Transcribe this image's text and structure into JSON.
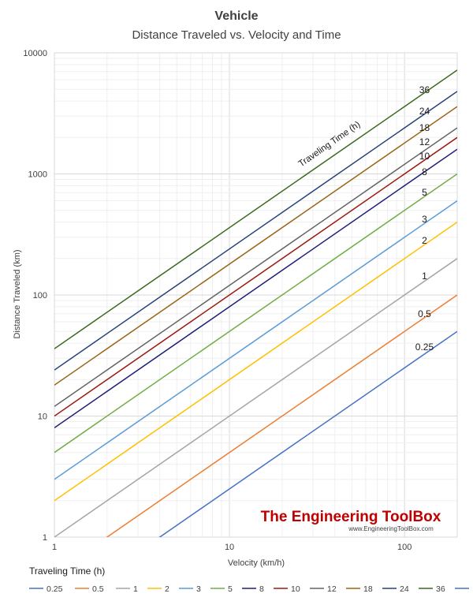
{
  "chart_data": {
    "type": "line",
    "title": "Vehicle",
    "subtitle": "Distance Traveled vs. Velocity and Time",
    "xlabel": "Velocity (km/h)",
    "ylabel": "Distance Traveled (km)",
    "xscale": "log",
    "yscale": "log",
    "xlim": [
      1,
      200
    ],
    "ylim": [
      1,
      10000
    ],
    "xticks": [
      "1",
      "10",
      "100"
    ],
    "yticks": [
      "1",
      "10",
      "100",
      "1000",
      "10000"
    ],
    "grid": true,
    "legend_title": "Traveling Time (h)",
    "legend_position": "bottom",
    "annotation": "Traveling Time (h)",
    "series": [
      {
        "name": "0.25",
        "time": 0.25,
        "color": "#4472c4",
        "x": [
          1,
          200
        ],
        "y": [
          0.25,
          50
        ]
      },
      {
        "name": "0.5",
        "time": 0.5,
        "color": "#ed7d31",
        "x": [
          1,
          200
        ],
        "y": [
          0.5,
          100
        ]
      },
      {
        "name": "1",
        "time": 1,
        "color": "#a5a5a5",
        "x": [
          1,
          200
        ],
        "y": [
          1,
          200
        ]
      },
      {
        "name": "2",
        "time": 2,
        "color": "#ffc000",
        "x": [
          1,
          200
        ],
        "y": [
          2,
          400
        ]
      },
      {
        "name": "3",
        "time": 3,
        "color": "#5b9bd5",
        "x": [
          1,
          200
        ],
        "y": [
          3,
          600
        ]
      },
      {
        "name": "5",
        "time": 5,
        "color": "#70ad47",
        "x": [
          1,
          200
        ],
        "y": [
          5,
          1000
        ]
      },
      {
        "name": "8",
        "time": 8,
        "color": "#1f1f7a",
        "x": [
          1,
          200
        ],
        "y": [
          8,
          1600
        ]
      },
      {
        "name": "10",
        "time": 10,
        "color": "#9e1a10",
        "x": [
          1,
          200
        ],
        "y": [
          10,
          2000
        ]
      },
      {
        "name": "12",
        "time": 12,
        "color": "#636363",
        "x": [
          1,
          200
        ],
        "y": [
          12,
          2400
        ]
      },
      {
        "name": "18",
        "time": 18,
        "color": "#996515",
        "x": [
          1,
          200
        ],
        "y": [
          18,
          3600
        ]
      },
      {
        "name": "24",
        "time": 24,
        "color": "#264478",
        "x": [
          1,
          200
        ],
        "y": [
          24,
          4800
        ]
      },
      {
        "name": "36",
        "time": 36,
        "color": "#3a6a1d",
        "x": [
          1,
          200
        ],
        "y": [
          36,
          7200
        ]
      }
    ],
    "series_labels": [
      "36",
      "24",
      "18",
      "12",
      "10",
      "8",
      "5",
      "3",
      "2",
      "1",
      "0.5",
      "0.25"
    ],
    "legend_extra_color": "#4472c4"
  },
  "watermark": {
    "brand": "The Engineering ToolBox",
    "url": "www.EngineeringToolBox.com"
  }
}
